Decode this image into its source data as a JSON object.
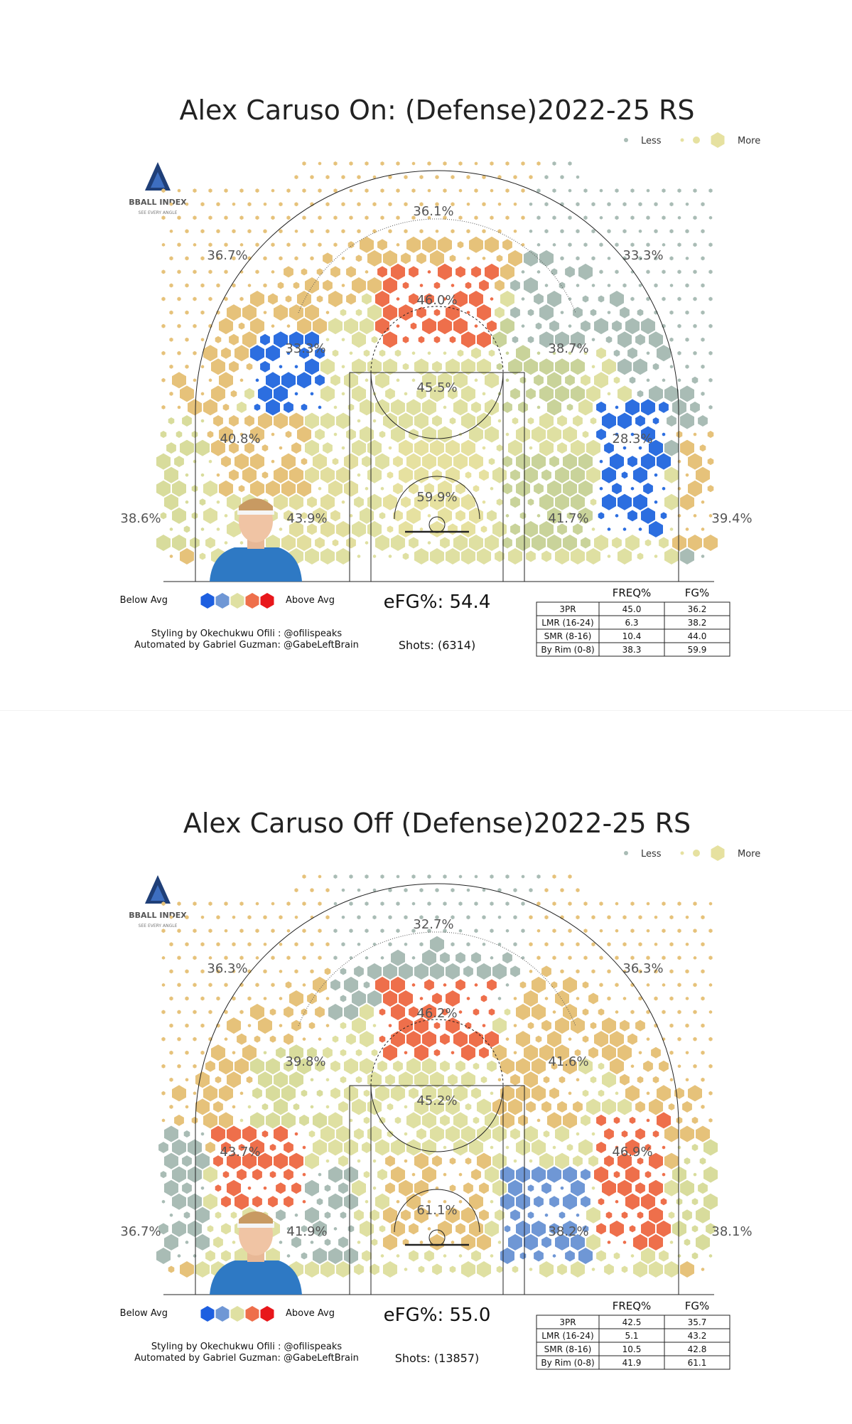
{
  "chart_data": [
    {
      "type": "heatmap",
      "title": "Alex Caruso On: (Defense)2022-25 RS",
      "efg_label": "eFG%: 54.4",
      "shots_label": "Shots: (6314)",
      "zones": [
        {
          "id": "3pt-top",
          "value": "36.1%",
          "color": "#e6c27a"
        },
        {
          "id": "3pt-left-wing",
          "value": "36.7%",
          "color": "#e6c27a"
        },
        {
          "id": "3pt-right-wing",
          "value": "33.3%",
          "color": "#a9bcb5"
        },
        {
          "id": "3pt-left-corner",
          "value": "38.6%",
          "color": "#d8dc9c"
        },
        {
          "id": "3pt-right-corner",
          "value": "39.4%",
          "color": "#e6c27a"
        },
        {
          "id": "lmr-top",
          "value": "46.0%",
          "color": "#ee6f4b"
        },
        {
          "id": "lmr-left",
          "value": "33.3%",
          "color": "#2c6ee0"
        },
        {
          "id": "lmr-right",
          "value": "38.7%",
          "color": "#c9d39a"
        },
        {
          "id": "lmr-left-base",
          "value": "40.8%",
          "color": "#e6c27a"
        },
        {
          "id": "lmr-right-base",
          "value": "28.3%",
          "color": "#2c6ee0"
        },
        {
          "id": "smr-center",
          "value": "45.5%",
          "color": "#dfe0a2"
        },
        {
          "id": "mid-left-low",
          "value": "43.9%",
          "color": "#e2de9e"
        },
        {
          "id": "mid-right-low",
          "value": "41.7%",
          "color": "#c9d39a"
        },
        {
          "id": "rim",
          "value": "59.9%",
          "color": "#e6e1a0"
        }
      ],
      "table": {
        "headers": [
          "FREQ%",
          "FG%"
        ],
        "rows": [
          {
            "label": "3PR",
            "freq": "45.0",
            "fg": "36.2"
          },
          {
            "label": "LMR (16-24)",
            "freq": "6.3",
            "fg": "38.2"
          },
          {
            "label": "SMR (8-16)",
            "freq": "10.4",
            "fg": "44.0"
          },
          {
            "label": "By Rim (0-8)",
            "freq": "38.3",
            "fg": "59.9"
          }
        ]
      }
    },
    {
      "type": "heatmap",
      "title": "Alex Caruso Off (Defense)2022-25 RS",
      "efg_label": "eFG%: 55.0",
      "shots_label": "Shots: (13857)",
      "zones": [
        {
          "id": "3pt-top",
          "value": "32.7%",
          "color": "#a9bcb5"
        },
        {
          "id": "3pt-left-wing",
          "value": "36.3%",
          "color": "#e6c27a"
        },
        {
          "id": "3pt-right-wing",
          "value": "36.3%",
          "color": "#e6c27a"
        },
        {
          "id": "3pt-left-corner",
          "value": "36.7%",
          "color": "#a9bcb5"
        },
        {
          "id": "3pt-right-corner",
          "value": "38.1%",
          "color": "#d8dc9c"
        },
        {
          "id": "lmr-top",
          "value": "46.2%",
          "color": "#ee6f4b"
        },
        {
          "id": "lmr-left",
          "value": "39.8%",
          "color": "#d8dc9c"
        },
        {
          "id": "lmr-right",
          "value": "41.6%",
          "color": "#e6c27a"
        },
        {
          "id": "lmr-left-base",
          "value": "43.7%",
          "color": "#ee6f4b"
        },
        {
          "id": "lmr-right-base",
          "value": "46.9%",
          "color": "#ee6f4b"
        },
        {
          "id": "smr-center",
          "value": "45.2%",
          "color": "#dfe0a2"
        },
        {
          "id": "mid-left-low",
          "value": "41.9%",
          "color": "#a9bcb5"
        },
        {
          "id": "mid-right-low",
          "value": "38.2%",
          "color": "#6f97d5"
        },
        {
          "id": "rim",
          "value": "61.1%",
          "color": "#e6c27a"
        }
      ],
      "table": {
        "headers": [
          "FREQ%",
          "FG%"
        ],
        "rows": [
          {
            "label": "3PR",
            "freq": "42.5",
            "fg": "35.7"
          },
          {
            "label": "LMR (16-24)",
            "freq": "5.1",
            "fg": "43.2"
          },
          {
            "label": "SMR (8-16)",
            "freq": "10.5",
            "fg": "42.8"
          },
          {
            "label": "By Rim (0-8)",
            "freq": "41.9",
            "fg": "61.1"
          }
        ]
      }
    }
  ],
  "common": {
    "size_legend": {
      "less": "Less",
      "more": "More"
    },
    "color_legend": {
      "below": "Below Avg",
      "above": "Above Avg",
      "colors": [
        "#1d5fe0",
        "#6f97d5",
        "#dfe0a2",
        "#ee6f4b",
        "#e8171b"
      ]
    },
    "logo": {
      "name": "BBALL INDEX",
      "tagline": "SEE EVERY ANGLE"
    },
    "credits": [
      "Styling by Okechukwu Ofili : @ofilispeaks",
      "Automated by Gabriel Guzman: @GabeLeftBrain"
    ]
  }
}
